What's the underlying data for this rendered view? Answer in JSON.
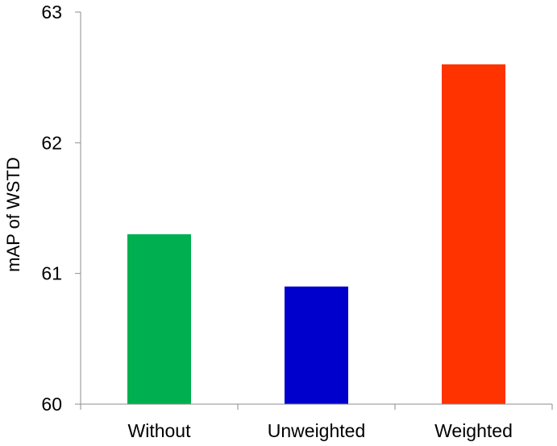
{
  "chart_data": {
    "type": "bar",
    "title": "",
    "xlabel": "",
    "ylabel": "mAP of WSTD",
    "ylim": [
      60,
      63
    ],
    "yticks": [
      60,
      61,
      62,
      63
    ],
    "categories": [
      "Without",
      "Unweighted",
      "Weighted"
    ],
    "values": [
      61.3,
      60.9,
      62.6
    ],
    "colors": [
      "#00b050",
      "#0000cc",
      "#ff3300"
    ],
    "grid": false,
    "legend": "none"
  }
}
